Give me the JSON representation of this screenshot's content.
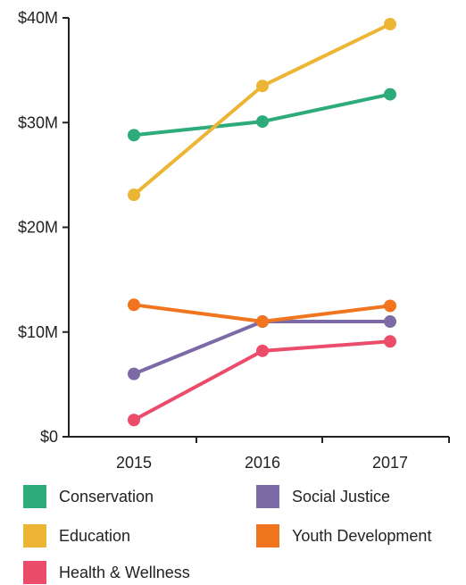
{
  "chart_data": {
    "type": "line",
    "x": [
      "2015",
      "2016",
      "2017"
    ],
    "ylim": [
      0,
      40
    ],
    "y_ticks": [
      "$0",
      "$10M",
      "$20M",
      "$30M",
      "$40M"
    ],
    "y_tick_values": [
      0,
      10,
      20,
      30,
      40
    ],
    "grid": false,
    "legend_position": "bottom",
    "series": [
      {
        "name": "Conservation",
        "color": "#2dab7b",
        "values": [
          28.8,
          30.1,
          32.7
        ]
      },
      {
        "name": "Education",
        "color": "#ecb534",
        "values": [
          23.1,
          33.5,
          39.4
        ]
      },
      {
        "name": "Health & Wellness",
        "color": "#eb4c6a",
        "values": [
          1.6,
          8.2,
          9.1
        ]
      },
      {
        "name": "Social Justice",
        "color": "#7b6aa6",
        "values": [
          6.0,
          11.0,
          11.0
        ]
      },
      {
        "name": "Youth Development",
        "color": "#f1751f",
        "values": [
          12.6,
          11.0,
          12.5
        ]
      }
    ]
  }
}
